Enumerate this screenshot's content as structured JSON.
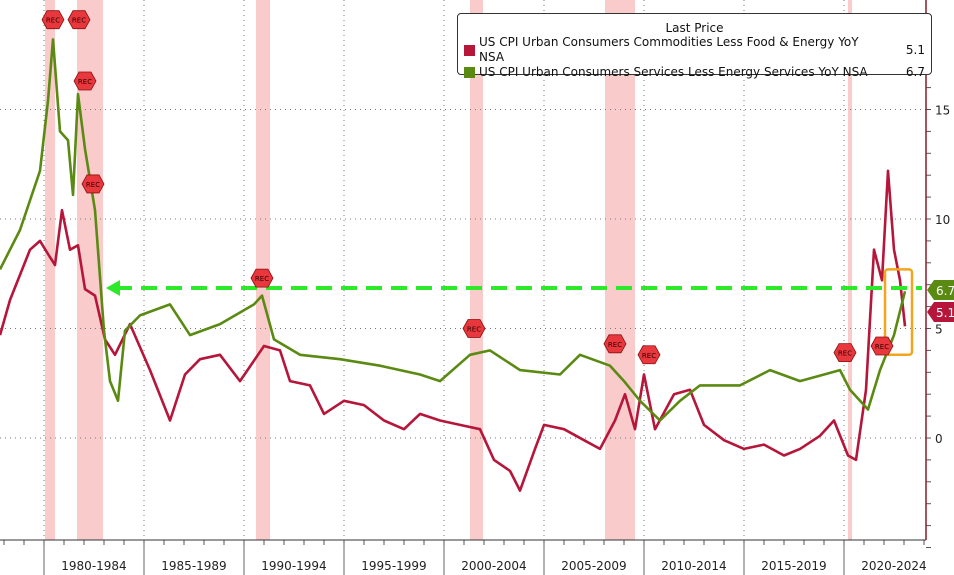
{
  "chart_data": {
    "type": "line",
    "title": "",
    "legend_title": "Last Price",
    "legend_placement": "top-right",
    "xlabel": "",
    "ylabel": "",
    "xlim": [
      1977.8,
      2024.1
    ],
    "ylim": [
      -5.2,
      20
    ],
    "y_ticks": [
      0,
      5,
      10,
      15
    ],
    "x_tick_labels": [
      "1980-1984",
      "1985-1989",
      "1990-1994",
      "1995-1999",
      "2000-2004",
      "2005-2009",
      "2010-2014",
      "2015-2019",
      "2020-2024"
    ],
    "x_tick_starts": [
      1980,
      1985,
      1990,
      1995,
      2000,
      2005,
      2010,
      2015,
      2020
    ],
    "series": [
      {
        "name": "US CPI Urban Consumers Commodities Less Food & Energy YoY NSA",
        "last": "5.1",
        "color": "#b5163a",
        "x": [
          1977.8,
          1978.3,
          1979.3,
          1979.8,
          1980.2,
          1980.55,
          1980.9,
          1981.3,
          1981.7,
          1982.05,
          1982.55,
          1983.05,
          1983.55,
          1984.3,
          1985.3,
          1986.3,
          1987.05,
          1987.8,
          1988.8,
          1989.8,
          1991,
          1991.8,
          1992.3,
          1993.3,
          1994,
          1995,
          1996,
          1997,
          1998,
          1998.8,
          1999.8,
          2000.8,
          2001.8,
          2002.5,
          2003.3,
          2003.8,
          2004.55,
          2005,
          2006,
          2007,
          2007.8,
          2008.55,
          2009.05,
          2009.55,
          2010,
          2010.55,
          2011.5,
          2012.3,
          2013,
          2014,
          2015,
          2016,
          2017,
          2017.8,
          2018.8,
          2019.5,
          2020.2,
          2020.6,
          2021.1,
          2021.5,
          2021.9,
          2022.2,
          2022.5,
          2022.8,
          2023.05
        ],
        "y": [
          4.7,
          6.3,
          8.6,
          9.0,
          8.4,
          7.9,
          10.4,
          8.6,
          8.8,
          6.8,
          6.5,
          4.5,
          3.8,
          5.2,
          3.1,
          0.8,
          2.9,
          3.6,
          3.8,
          2.6,
          4.2,
          4.0,
          2.6,
          2.4,
          1.1,
          1.7,
          1.5,
          0.8,
          0.4,
          1.1,
          0.8,
          0.6,
          0.4,
          -1.0,
          -1.5,
          -2.4,
          -0.5,
          0.6,
          0.4,
          -0.1,
          -0.5,
          0.8,
          2.0,
          0.4,
          2.9,
          0.4,
          2.0,
          2.2,
          0.6,
          -0.1,
          -0.5,
          -0.3,
          -0.8,
          -0.5,
          0.1,
          0.8,
          -0.8,
          -1.0,
          2.2,
          8.6,
          7.2,
          12.2,
          8.6,
          7.2,
          5.1
        ]
      },
      {
        "name": "US CPI Urban Consumers Services Less Energy Services YoY NSA",
        "last": "6.7",
        "color": "#5a8a12",
        "x": [
          1977.8,
          1978.8,
          1979.8,
          1980.2,
          1980.45,
          1980.8,
          1981.2,
          1981.45,
          1981.7,
          1982.05,
          1982.55,
          1983,
          1983.3,
          1983.7,
          1984.05,
          1984.8,
          1986.3,
          1987.3,
          1988.8,
          1990.5,
          1990.9,
          1991.5,
          1992.8,
          1994.8,
          1996.8,
          1998.8,
          1999.8,
          2001.3,
          2002.3,
          2003.8,
          2005.8,
          2006.8,
          2008.3,
          2009,
          2009.8,
          2010.8,
          2011.8,
          2012.8,
          2014.8,
          2016.3,
          2017.8,
          2019.8,
          2020.3,
          2021.2,
          2021.8,
          2022.5,
          2023.05
        ],
        "y": [
          7.7,
          9.5,
          12.2,
          15.4,
          18.2,
          14.0,
          13.6,
          11.1,
          15.7,
          13.2,
          10.4,
          4.9,
          2.6,
          1.7,
          4.9,
          5.6,
          6.1,
          4.7,
          5.2,
          6.1,
          6.5,
          4.5,
          3.8,
          3.6,
          3.3,
          2.9,
          2.6,
          3.8,
          4.0,
          3.1,
          2.9,
          3.8,
          3.3,
          2.6,
          1.7,
          0.8,
          1.7,
          2.4,
          2.4,
          3.1,
          2.6,
          3.1,
          2.2,
          1.3,
          3.1,
          4.7,
          6.7
        ]
      }
    ],
    "recessions": [
      [
        1980.05,
        1980.55
      ],
      [
        1981.65,
        1982.95
      ],
      [
        1990.6,
        1991.3
      ],
      [
        2001.3,
        2001.95
      ],
      [
        2008.05,
        2009.55
      ],
      [
        2020.2,
        2020.4
      ]
    ],
    "annotations": {
      "rec_label": "REC",
      "rec_markers": [
        [
          1980.45,
          19.1
        ],
        [
          1980.55,
          19.1
        ],
        [
          1982.05,
          16.3
        ],
        [
          1982.45,
          11.6
        ],
        [
          1990.9,
          7.3
        ],
        [
          2001.5,
          5.0
        ],
        [
          2008.55,
          4.3
        ],
        [
          2009.05,
          3.8
        ],
        [
          2020.05,
          3.9
        ],
        [
          2020.7,
          4.2
        ]
      ],
      "reference_line_value": 6.85,
      "reference_line_from": 1983.1,
      "highlight_box": {
        "x": [
          2022.05,
          2023.4
        ],
        "y": [
          3.8,
          7.7
        ]
      }
    },
    "last_value_tags": [
      "6.7",
      "5.1"
    ]
  }
}
